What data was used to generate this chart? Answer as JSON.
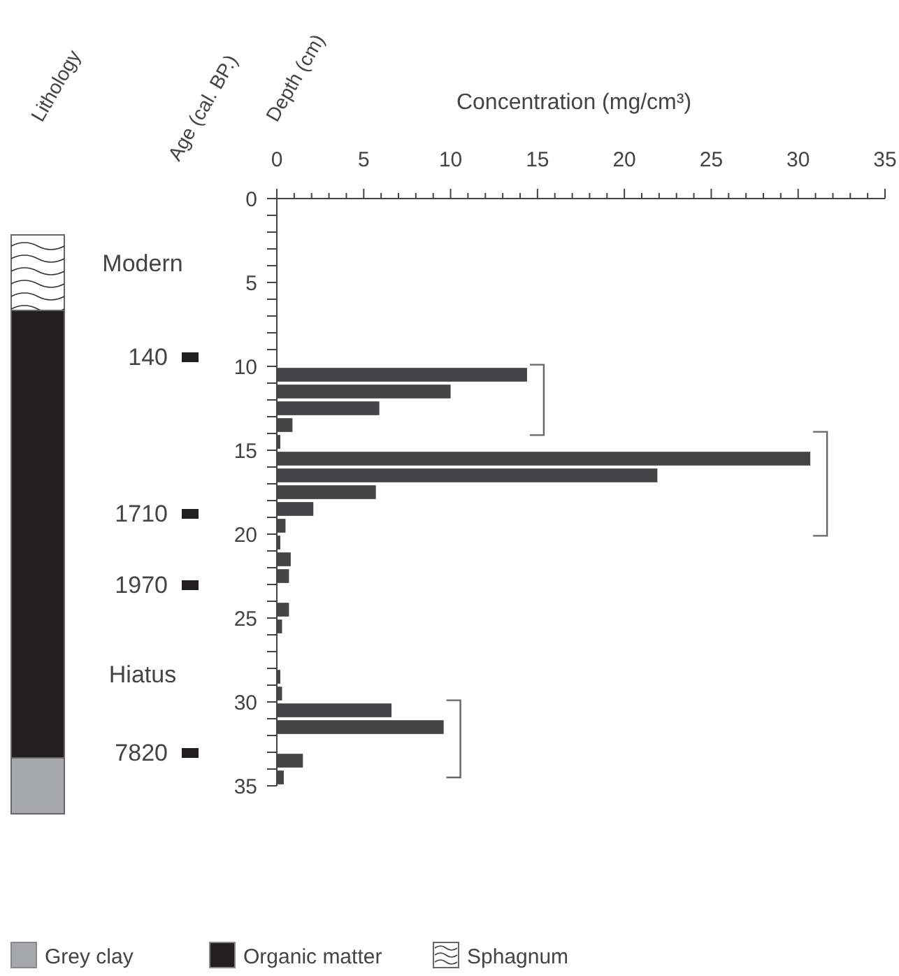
{
  "chart_data": {
    "type": "bar",
    "orientation": "horizontal",
    "xlabel": "Concentration (mg/cm³)",
    "ylabel": "Depth (cm)",
    "x": [
      10.5,
      11.5,
      12.5,
      13.5,
      14.5,
      15.5,
      16.5,
      17.5,
      18.5,
      19.5,
      20.5,
      21.5,
      22.5,
      24.5,
      25.5,
      28.5,
      29.5,
      30.5,
      31.5,
      33.5,
      34.5
    ],
    "values": [
      14.4,
      10.0,
      5.9,
      0.9,
      0.2,
      30.7,
      21.9,
      5.7,
      2.1,
      0.5,
      0.2,
      0.8,
      0.7,
      0.7,
      0.3,
      0.2,
      0.3,
      6.6,
      9.6,
      1.5,
      0.4
    ],
    "color": "#444446",
    "xlim": [
      0,
      35
    ],
    "xticks": [
      0,
      {
        "value": 1,
        "label": null
      },
      {
        "value": 2,
        "label": null
      },
      {
        "value": 3,
        "label": null
      },
      {
        "value": 4,
        "label": null
      },
      5,
      {
        "value": 6,
        "label": null
      },
      {
        "value": 7,
        "label": null
      },
      {
        "value": 8,
        "label": null
      },
      {
        "value": 9,
        "label": null
      },
      10,
      {
        "value": 11,
        "label": null
      },
      {
        "value": 12,
        "label": null
      },
      {
        "value": 13,
        "label": null
      },
      {
        "value": 14,
        "label": null
      },
      15,
      {
        "value": 16,
        "label": null
      },
      {
        "value": 17,
        "label": null
      },
      {
        "value": 18,
        "label": null
      },
      {
        "value": 19,
        "label": null
      },
      20,
      {
        "value": 21,
        "label": null
      },
      {
        "value": 22,
        "label": null
      },
      {
        "value": 23,
        "label": null
      },
      {
        "value": 24,
        "label": null
      },
      25,
      {
        "value": 26,
        "label": null
      },
      {
        "value": 27,
        "label": null
      },
      {
        "value": 28,
        "label": null
      },
      {
        "value": 29,
        "label": null
      },
      30,
      {
        "value": 31,
        "label": null
      },
      {
        "value": 32,
        "label": null
      },
      {
        "value": 33,
        "label": null
      },
      {
        "value": 34,
        "label": null
      },
      35
    ],
    "ylim": [
      35,
      0
    ],
    "yticks": [
      0,
      {
        "value": 1,
        "label": null
      },
      {
        "value": 2,
        "label": null
      },
      {
        "value": 3,
        "label": null
      },
      {
        "value": 4,
        "label": null
      },
      5,
      {
        "value": 6,
        "label": null
      },
      {
        "value": 7,
        "label": null
      },
      {
        "value": 8,
        "label": null
      },
      {
        "value": 9,
        "label": null
      },
      10,
      {
        "value": 11,
        "label": null
      },
      {
        "value": 12,
        "label": null
      },
      {
        "value": 13,
        "label": null
      },
      {
        "value": 14,
        "label": null
      },
      15,
      {
        "value": 16,
        "label": null
      },
      {
        "value": 17,
        "label": null
      },
      {
        "value": 18,
        "label": null
      },
      {
        "value": 19,
        "label": null
      },
      20,
      {
        "value": 21,
        "label": null
      },
      {
        "value": 22,
        "label": null
      },
      {
        "value": 23,
        "label": null
      },
      {
        "value": 24,
        "label": null
      },
      25,
      {
        "value": 26,
        "label": null
      },
      {
        "value": 27,
        "label": null
      },
      {
        "value": 28,
        "label": null
      },
      {
        "value": 29,
        "label": null
      },
      30,
      {
        "value": 31,
        "label": null
      },
      {
        "value": 32,
        "label": null
      },
      {
        "value": 33,
        "label": null
      },
      {
        "value": 34,
        "label": null
      },
      35
    ],
    "grid": false,
    "annotations": [
      "Lithology",
      "Age (cal. BP.)",
      "Modern",
      "140",
      "1710",
      "1970",
      "Hiatus",
      "7820",
      "Grey clay",
      "Organic matter",
      "Sphagnum"
    ]
  }
}
